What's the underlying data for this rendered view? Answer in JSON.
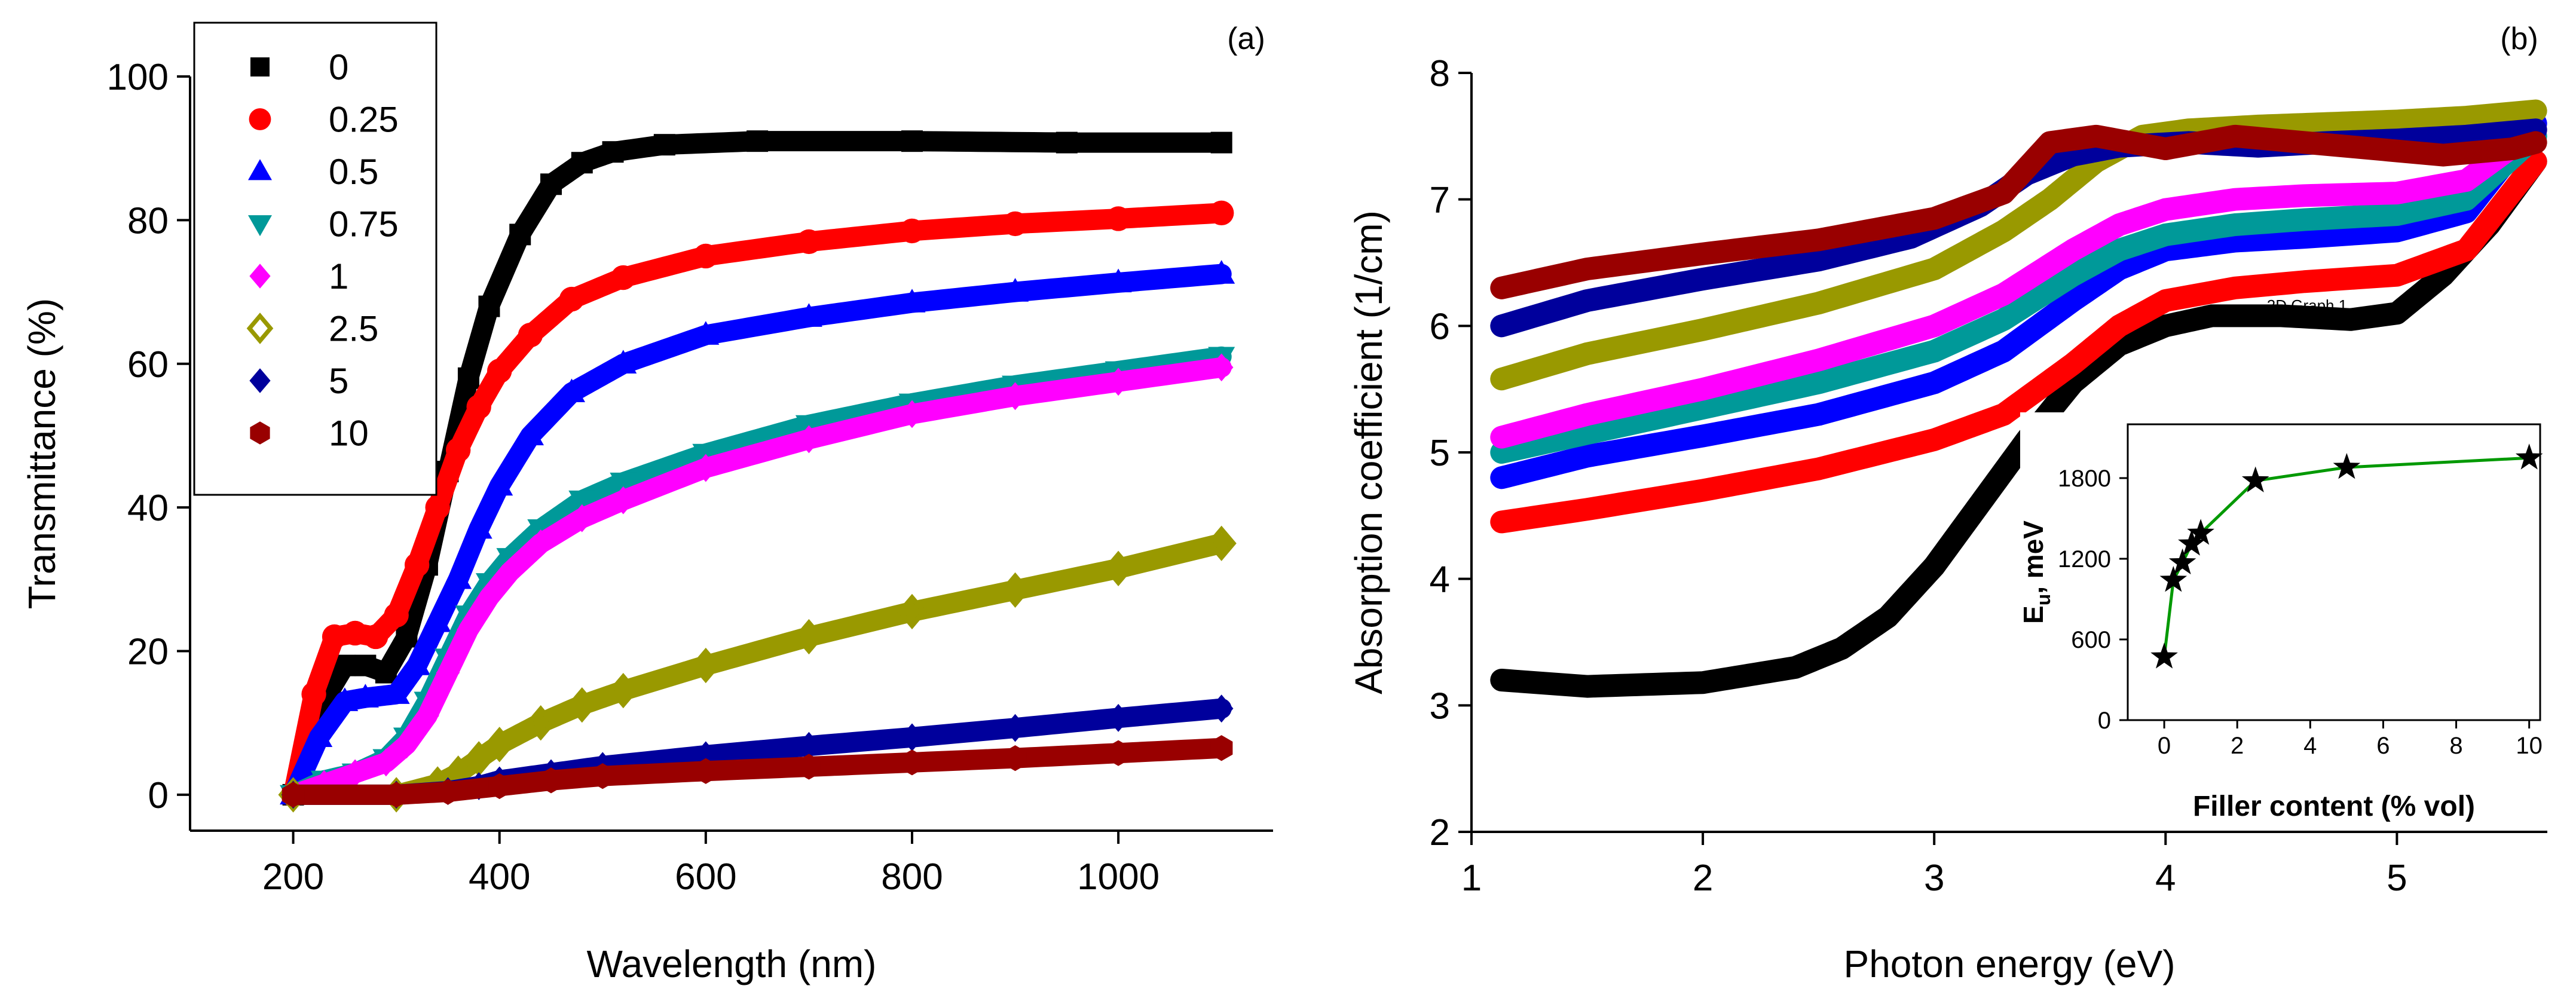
{
  "chart_data": [
    {
      "type": "scatter",
      "panel_label": "(a)",
      "xlabel": "Wavelength (nm)",
      "ylabel": "Transmittance (%)",
      "xlim": [
        100,
        1150
      ],
      "ylim": [
        -5,
        100
      ],
      "xticks": [
        200,
        400,
        600,
        800,
        1000
      ],
      "yticks": [
        0,
        20,
        40,
        60,
        80,
        100
      ],
      "legend": {
        "placement": "top-left"
      },
      "series": [
        {
          "name": "0",
          "color": "#000000",
          "marker": "square",
          "x": [
            200,
            225,
            250,
            270,
            290,
            310,
            330,
            350,
            370,
            390,
            420,
            450,
            480,
            510,
            560,
            650,
            800,
            950,
            1100
          ],
          "y": [
            0,
            12,
            18,
            18,
            17,
            22,
            32,
            45,
            58,
            68,
            78,
            85,
            88,
            89.5,
            90.5,
            91,
            91,
            90.8,
            90.8
          ]
        },
        {
          "name": "0.25",
          "color": "#ff0000",
          "marker": "circle",
          "x": [
            200,
            220,
            240,
            260,
            280,
            300,
            320,
            340,
            360,
            380,
            400,
            430,
            470,
            520,
            600,
            700,
            800,
            900,
            1000,
            1100
          ],
          "y": [
            0,
            14,
            22,
            22.5,
            22,
            25,
            32,
            40,
            48,
            54,
            59,
            64,
            69,
            72,
            75,
            77,
            78.5,
            79.5,
            80.2,
            81
          ]
        },
        {
          "name": "0.5",
          "color": "#0000ff",
          "marker": "triangle-up",
          "x": [
            200,
            225,
            250,
            270,
            300,
            320,
            340,
            360,
            380,
            400,
            430,
            470,
            520,
            600,
            700,
            800,
            900,
            1000,
            1100
          ],
          "y": [
            0,
            8,
            13,
            13.5,
            14,
            18,
            24,
            30,
            37,
            43,
            50,
            56,
            60,
            64,
            66.5,
            68.5,
            70,
            71.3,
            72.5
          ]
        },
        {
          "name": "0.75",
          "color": "#009999",
          "marker": "triangle-down",
          "x": [
            200,
            230,
            260,
            290,
            310,
            330,
            350,
            370,
            390,
            410,
            440,
            480,
            520,
            600,
            700,
            800,
            900,
            1000,
            1100
          ],
          "y": [
            0,
            2,
            3,
            5,
            8,
            13,
            19,
            25,
            29.5,
            33,
            37,
            41,
            43.5,
            47.5,
            51.5,
            54.5,
            57,
            59,
            61
          ]
        },
        {
          "name": "1",
          "color": "#ff00ff",
          "marker": "diamond",
          "x": [
            200,
            230,
            260,
            290,
            310,
            330,
            350,
            370,
            390,
            410,
            440,
            480,
            520,
            600,
            700,
            800,
            900,
            1000,
            1100
          ],
          "y": [
            0,
            1.5,
            3,
            4.5,
            7,
            11,
            17,
            23,
            27.5,
            31,
            35,
            38.5,
            41,
            45.5,
            49.5,
            53,
            55.5,
            57.5,
            59.5
          ]
        },
        {
          "name": "2.5",
          "color": "#999900",
          "marker": "diamond-open",
          "x": [
            200,
            300,
            340,
            360,
            380,
            400,
            440,
            480,
            520,
            600,
            700,
            800,
            900,
            1000,
            1100
          ],
          "y": [
            0,
            0,
            1.5,
            3,
            5,
            7,
            10,
            12.5,
            14.5,
            18,
            22,
            25.5,
            28.5,
            31.5,
            35
          ]
        },
        {
          "name": "5",
          "color": "#00009c",
          "marker": "diamond",
          "x": [
            200,
            300,
            350,
            380,
            400,
            450,
            500,
            600,
            700,
            800,
            900,
            1000,
            1100
          ],
          "y": [
            0,
            0,
            0.5,
            1.2,
            2,
            3,
            4,
            5.5,
            6.8,
            8,
            9.3,
            10.7,
            12
          ]
        },
        {
          "name": "10",
          "color": "#990000",
          "marker": "hexagon",
          "x": [
            200,
            300,
            350,
            400,
            450,
            500,
            600,
            700,
            800,
            900,
            1000,
            1100
          ],
          "y": [
            0,
            0,
            0.4,
            1.2,
            2,
            2.6,
            3.3,
            3.9,
            4.5,
            5.1,
            5.8,
            6.5
          ]
        }
      ]
    },
    {
      "type": "scatter",
      "panel_label": "(b)",
      "xlabel": "Photon energy (eV)",
      "ylabel": "Absorption coefficient (1/cm)",
      "xlim": [
        1,
        5.65
      ],
      "ylim": [
        2,
        8
      ],
      "xticks": [
        1,
        2,
        3,
        4,
        5
      ],
      "yticks": [
        2,
        3,
        4,
        5,
        6,
        7,
        8
      ],
      "annotation": "2D Graph 1",
      "series": [
        {
          "name": "0",
          "color": "#000000",
          "x": [
            1.13,
            1.5,
            2.0,
            2.4,
            2.6,
            2.8,
            3.0,
            3.2,
            3.4,
            3.6,
            3.8,
            4.0,
            4.2,
            4.5,
            4.8,
            5.0,
            5.2,
            5.4,
            5.6
          ],
          "y": [
            3.2,
            3.15,
            3.18,
            3.3,
            3.45,
            3.7,
            4.1,
            4.6,
            5.1,
            5.55,
            5.85,
            6.0,
            6.08,
            6.08,
            6.05,
            6.1,
            6.4,
            6.8,
            7.3
          ]
        },
        {
          "name": "0.25",
          "color": "#ff0000",
          "x": [
            1.13,
            1.5,
            2.0,
            2.5,
            3.0,
            3.3,
            3.6,
            3.8,
            4.0,
            4.3,
            4.6,
            5.0,
            5.3,
            5.6
          ],
          "y": [
            4.45,
            4.55,
            4.7,
            4.87,
            5.1,
            5.3,
            5.7,
            6.0,
            6.2,
            6.3,
            6.35,
            6.4,
            6.6,
            7.3
          ]
        },
        {
          "name": "0.5",
          "color": "#0000ff",
          "x": [
            1.13,
            1.5,
            2.0,
            2.5,
            3.0,
            3.3,
            3.6,
            3.8,
            4.0,
            4.3,
            4.6,
            5.0,
            5.3,
            5.6
          ],
          "y": [
            4.8,
            4.97,
            5.13,
            5.3,
            5.55,
            5.8,
            6.2,
            6.45,
            6.6,
            6.67,
            6.7,
            6.75,
            6.9,
            7.6
          ]
        },
        {
          "name": "0.75",
          "color": "#009999",
          "x": [
            1.13,
            1.5,
            2.0,
            2.5,
            3.0,
            3.3,
            3.6,
            3.8,
            4.0,
            4.3,
            4.6,
            5.0,
            5.3,
            5.6
          ],
          "y": [
            5.0,
            5.15,
            5.35,
            5.55,
            5.8,
            6.05,
            6.4,
            6.6,
            6.72,
            6.8,
            6.84,
            6.88,
            7.0,
            7.5
          ]
        },
        {
          "name": "1",
          "color": "#ff00ff",
          "x": [
            1.13,
            1.5,
            2.0,
            2.5,
            3.0,
            3.3,
            3.6,
            3.8,
            4.0,
            4.3,
            4.6,
            5.0,
            5.3,
            5.6
          ],
          "y": [
            5.12,
            5.3,
            5.5,
            5.73,
            6.0,
            6.25,
            6.6,
            6.8,
            6.92,
            7.0,
            7.03,
            7.05,
            7.15,
            7.55
          ]
        },
        {
          "name": "2.5",
          "color": "#999900",
          "x": [
            1.13,
            1.5,
            2.0,
            2.5,
            3.0,
            3.3,
            3.5,
            3.7,
            3.9,
            4.1,
            4.4,
            4.7,
            5.0,
            5.3,
            5.6
          ],
          "y": [
            5.58,
            5.78,
            5.97,
            6.18,
            6.45,
            6.75,
            7.0,
            7.3,
            7.5,
            7.55,
            7.58,
            7.6,
            7.62,
            7.65,
            7.7
          ]
        },
        {
          "name": "5",
          "color": "#00009c",
          "x": [
            1.13,
            1.5,
            2.0,
            2.5,
            2.9,
            3.2,
            3.4,
            3.6,
            3.8,
            4.1,
            4.4,
            4.7,
            5.0,
            5.3,
            5.6
          ],
          "y": [
            6.0,
            6.2,
            6.37,
            6.52,
            6.7,
            6.95,
            7.2,
            7.35,
            7.42,
            7.45,
            7.42,
            7.45,
            7.47,
            7.5,
            7.55
          ]
        },
        {
          "name": "10",
          "color": "#990000",
          "x": [
            1.13,
            1.5,
            2.0,
            2.5,
            3.0,
            3.3,
            3.5,
            3.7,
            4.0,
            4.3,
            4.6,
            4.9,
            5.2,
            5.5,
            5.6
          ],
          "y": [
            6.3,
            6.45,
            6.57,
            6.68,
            6.85,
            7.05,
            7.45,
            7.5,
            7.4,
            7.5,
            7.45,
            7.4,
            7.35,
            7.4,
            7.45
          ]
        }
      ]
    },
    {
      "type": "line",
      "role": "inset",
      "xlabel": "Filler content (% vol)",
      "ylabel": "Eu, meV",
      "ylabel_main": "E",
      "ylabel_sub": "u",
      "ylabel_tail": ", meV",
      "xlim": [
        -1,
        10.3
      ],
      "ylim": [
        0,
        2200
      ],
      "xticks": [
        0,
        2,
        4,
        6,
        8,
        10
      ],
      "yticks": [
        0,
        600,
        1200,
        1800
      ],
      "color": "#009900",
      "marker": "star",
      "x": [
        0,
        0.25,
        0.5,
        0.75,
        1,
        2.5,
        5,
        10
      ],
      "y": [
        470,
        1040,
        1170,
        1310,
        1390,
        1780,
        1880,
        1950
      ]
    }
  ]
}
